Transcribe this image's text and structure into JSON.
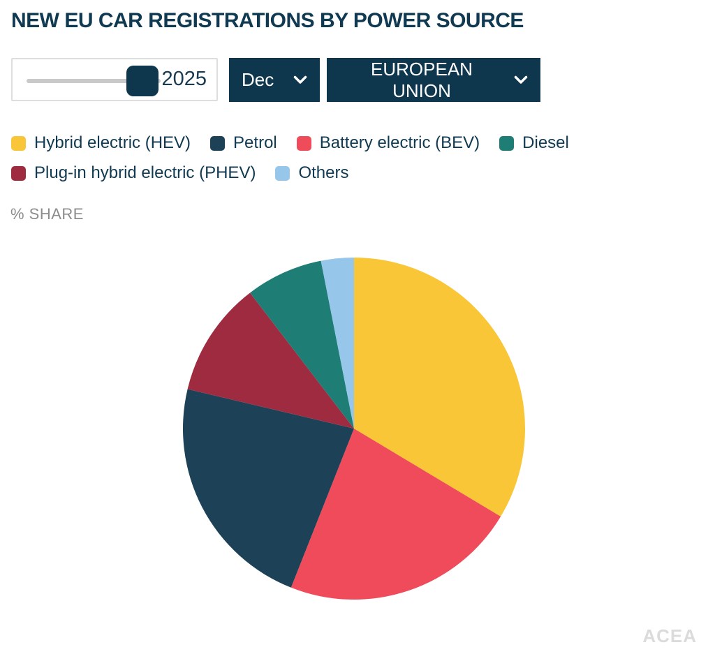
{
  "title": "NEW EU CAR REGISTRATIONS BY POWER SOURCE",
  "controls": {
    "year_slider": {
      "value": "2025",
      "position": "max"
    },
    "month_dropdown": {
      "value": "Dec"
    },
    "region_dropdown": {
      "value": "EUROPEAN UNION"
    }
  },
  "share_label": "% SHARE",
  "watermark": "ACEA",
  "colors": {
    "accent_navy": "#0e374e",
    "text_navy": "#103a52",
    "muted_gray": "#8c8c8c",
    "watermark_gray": "#dbdbdb",
    "track_gray": "#c9c9c9"
  },
  "chart_data": {
    "type": "pie",
    "title": "NEW EU CAR REGISTRATIONS BY POWER SOURCE",
    "unit": "% share",
    "start_angle_deg": 0,
    "direction": "clockwise",
    "radius_px": 245,
    "slices": [
      {
        "label": "Hybrid electric (HEV)",
        "value": 33.6,
        "color": "#F8C636"
      },
      {
        "label": "Battery electric (BEV)",
        "value": 22.4,
        "color": "#EF4B5A"
      },
      {
        "label": "Petrol",
        "value": 22.7,
        "color": "#1D4157"
      },
      {
        "label": "Plug-in hybrid electric (PHEV)",
        "value": 10.9,
        "color": "#9F2B40"
      },
      {
        "label": "Diesel",
        "value": 7.3,
        "color": "#1E7D75"
      },
      {
        "label": "Others",
        "value": 3.1,
        "color": "#96C7EA"
      }
    ],
    "legend": [
      {
        "label": "Hybrid electric (HEV)",
        "color": "#F8C636"
      },
      {
        "label": "Petrol",
        "color": "#1D4157"
      },
      {
        "label": "Battery electric (BEV)",
        "color": "#EF4B5A"
      },
      {
        "label": "Diesel",
        "color": "#1E7D75"
      },
      {
        "label": "Plug-in hybrid electric (PHEV)",
        "color": "#9F2B40"
      },
      {
        "label": "Others",
        "color": "#96C7EA"
      }
    ],
    "legend_position": "top-left",
    "data_labels_shown": false
  }
}
